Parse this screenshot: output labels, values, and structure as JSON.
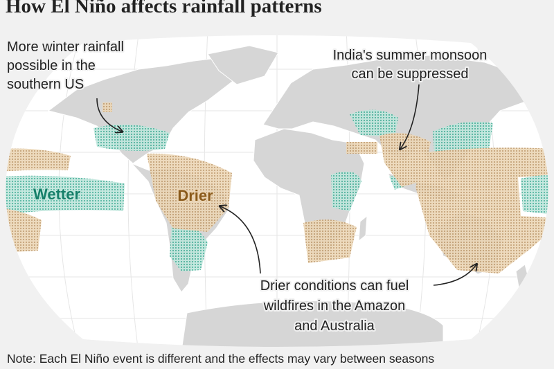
{
  "title": "How El Niño affects rainfall patterns",
  "annotations": [
    {
      "lines": [
        "More winter rainfall",
        "possible in the",
        "southern US"
      ]
    },
    {
      "lines": [
        "India's summer monsoon",
        "can be suppressed"
      ]
    },
    {
      "lines": [
        "Drier conditions can fuel",
        "wildfires in the Amazon",
        "and Australia"
      ]
    }
  ],
  "labels": {
    "wetter": "Wetter",
    "drier": "Drier"
  },
  "note": "Note: Each El Niño event is different and the effects may vary between seasons"
}
